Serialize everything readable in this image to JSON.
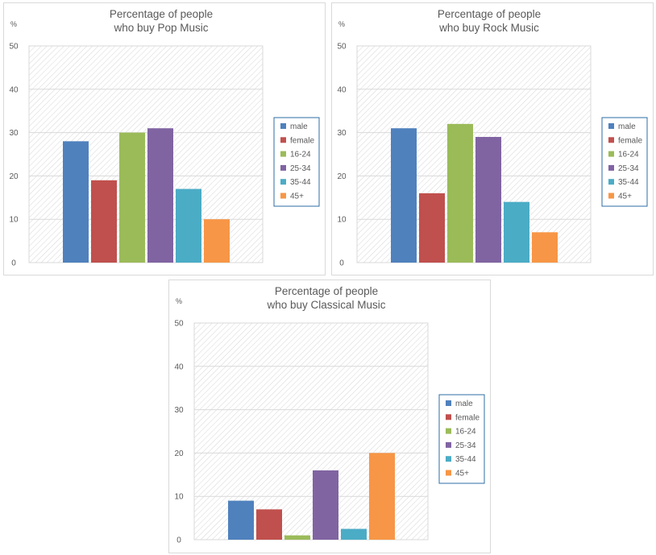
{
  "colors": {
    "male": "#4f81bd",
    "female": "#c0504d",
    "16-24": "#9bbb59",
    "25-34": "#8064a2",
    "35-44": "#4bacc6",
    "45+": "#f79646",
    "grid": "#d9d9d9",
    "hatch": "#d6d6d6",
    "legend_border": "#2e6da4"
  },
  "chart_data": [
    {
      "type": "bar",
      "title_lines": [
        "Percentage of people",
        "who buy Pop Music"
      ],
      "unit_label": "%",
      "ylim": [
        0,
        50
      ],
      "yticks": [
        0,
        10,
        20,
        30,
        40,
        50
      ],
      "grid": true,
      "legend_position": "right",
      "categories": [
        "male",
        "female",
        "16-24",
        "25-34",
        "35-44",
        "45+"
      ],
      "values": [
        28,
        19,
        30,
        31,
        17,
        10
      ]
    },
    {
      "type": "bar",
      "title_lines": [
        "Percentage of people",
        "who buy Rock Music"
      ],
      "unit_label": "%",
      "ylim": [
        0,
        50
      ],
      "yticks": [
        0,
        10,
        20,
        30,
        40,
        50
      ],
      "grid": true,
      "legend_position": "right",
      "categories": [
        "male",
        "female",
        "16-24",
        "25-34",
        "35-44",
        "45+"
      ],
      "values": [
        31,
        16,
        32,
        29,
        14,
        7
      ]
    },
    {
      "type": "bar",
      "title_lines": [
        "Percentage of people",
        "who buy  Classical Music"
      ],
      "unit_label": "%",
      "ylim": [
        0,
        50
      ],
      "yticks": [
        0,
        10,
        20,
        30,
        40,
        50
      ],
      "grid": true,
      "legend_position": "right",
      "categories": [
        "male",
        "female",
        "16-24",
        "25-34",
        "35-44",
        "45+"
      ],
      "values": [
        9,
        7,
        1,
        16,
        2.5,
        20
      ]
    }
  ]
}
